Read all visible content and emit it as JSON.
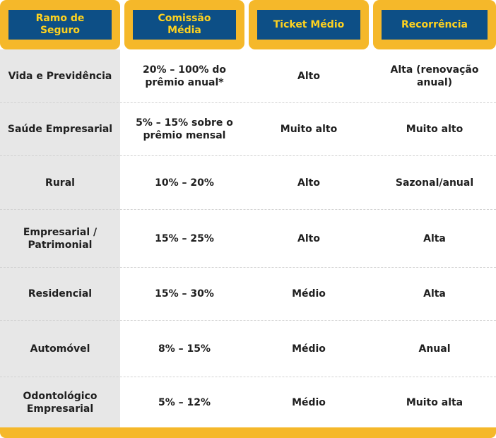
{
  "table": {
    "headers": [
      "Ramo de Seguro",
      "Comissão Média",
      "Ticket Médio",
      "Recorrência"
    ],
    "rows": [
      {
        "ramo": "Vida e Previdência",
        "comissao": "20% – 100% do prêmio anual*",
        "ticket": "Alto",
        "recorrencia": "Alta (renovação anual)"
      },
      {
        "ramo": "Saúde Empresarial",
        "comissao": "5% – 15% sobre o prêmio mensal",
        "ticket": "Muito alto",
        "recorrencia": "Muito alto"
      },
      {
        "ramo": "Rural",
        "comissao": "10% – 20%",
        "ticket": "Alto",
        "recorrencia": "Sazonal/anual"
      },
      {
        "ramo": "Empresarial / Patrimonial",
        "comissao": "15% – 25%",
        "ticket": "Alto",
        "recorrencia": "Alta"
      },
      {
        "ramo": "Residencial",
        "comissao": "15% – 30%",
        "ticket": "Médio",
        "recorrencia": "Alta"
      },
      {
        "ramo": "Automóvel",
        "comissao": "8% – 15%",
        "ticket": "Médio",
        "recorrencia": "Anual"
      },
      {
        "ramo": "Odontológico Empresarial",
        "comissao": "5% – 12%",
        "ticket": "Médio",
        "recorrencia": "Muito alta"
      }
    ]
  },
  "colors": {
    "header_bg": "#0d4f86",
    "header_text": "#ffd21f",
    "accent_yellow": "#f5b82a",
    "first_col_shade": "#e7e7e7"
  }
}
